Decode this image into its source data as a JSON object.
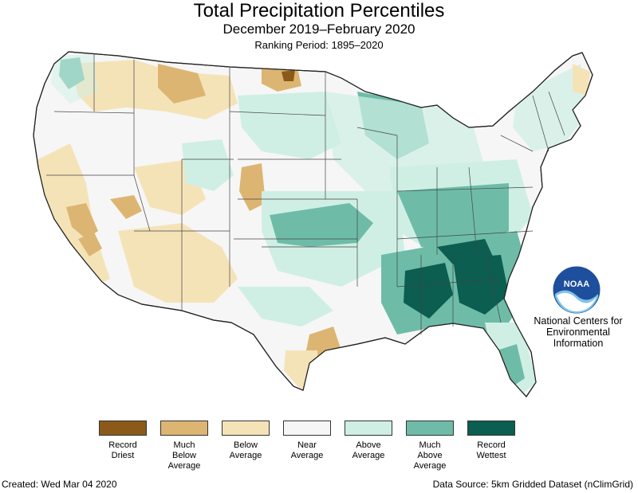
{
  "header": {
    "title": "Total Precipitation Percentiles",
    "period": "December 2019–February 2020",
    "ranking": "Ranking Period: 1895–2020"
  },
  "logo": {
    "icon": "noaa-logo-icon",
    "text": "NOAA"
  },
  "agency": {
    "line1": "National Centers for",
    "line2": "Environmental",
    "line3": "Information"
  },
  "legend": {
    "items": [
      {
        "label": "Record\nDriest",
        "color": "#8B5A1B"
      },
      {
        "label": "Much\nBelow\nAverage",
        "color": "#DDB572"
      },
      {
        "label": "Below\nAverage",
        "color": "#F5E3B8"
      },
      {
        "label": "Near\nAverage",
        "color": "#F6F6F6"
      },
      {
        "label": "Above\nAverage",
        "color": "#CFEFE5"
      },
      {
        "label": "Much\nAbove\nAverage",
        "color": "#6EBCA8"
      },
      {
        "label": "Record\nWettest",
        "color": "#0B5E50"
      }
    ]
  },
  "footer": {
    "created": "Created: Wed Mar 04 2020",
    "source": "Data Source: 5km Gridded Dataset (nClimGrid)"
  }
}
